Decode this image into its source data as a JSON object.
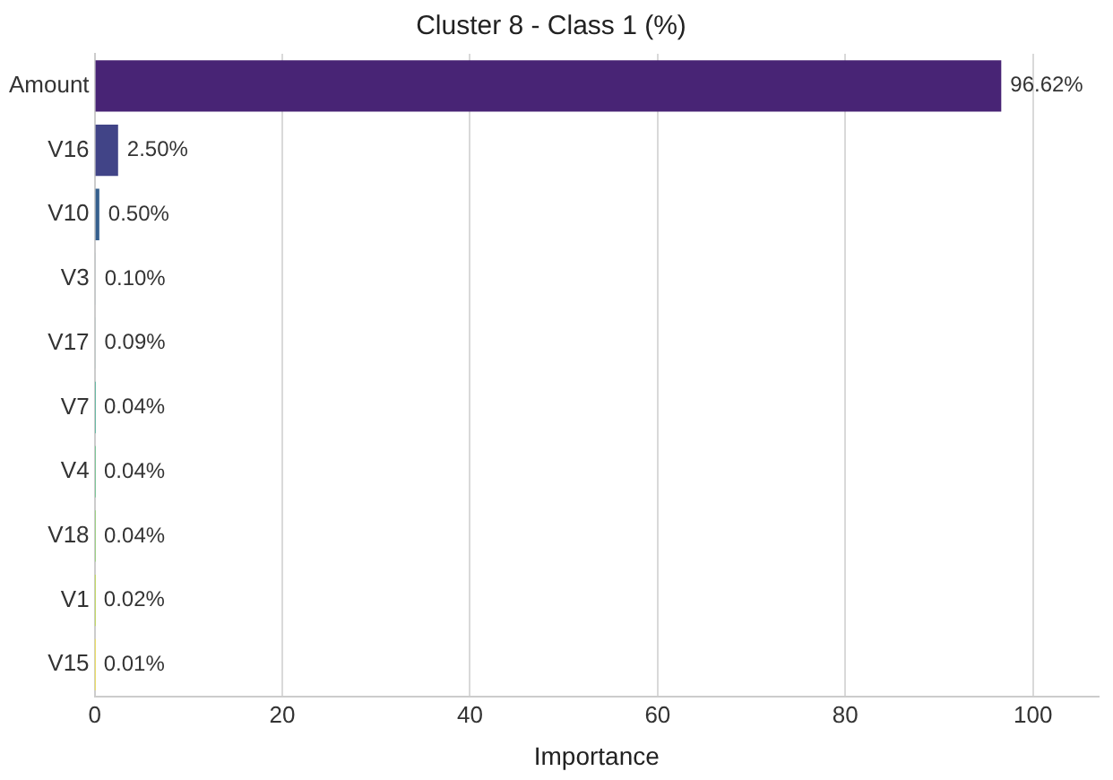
{
  "chart_data": {
    "type": "bar",
    "orientation": "horizontal",
    "title": "Cluster 8 - Class 1 (%)",
    "xlabel": "Importance",
    "categories": [
      "Amount",
      "V16",
      "V10",
      "V3",
      "V17",
      "V7",
      "V4",
      "V18",
      "V1",
      "V15"
    ],
    "values": [
      96.62,
      2.5,
      0.5,
      0.1,
      0.09,
      0.04,
      0.04,
      0.04,
      0.02,
      0.01
    ],
    "value_labels": [
      "96.62%",
      "2.50%",
      "0.50%",
      "0.10%",
      "0.09%",
      "0.04%",
      "0.04%",
      "0.04%",
      "0.02%",
      "0.01%"
    ],
    "colors": [
      "#482475",
      "#414487",
      "#355f8d",
      "#2a788e",
      "#21918c",
      "#22a884",
      "#44bf70",
      "#7ad151",
      "#bddf26",
      "#fde725"
    ],
    "xlim": [
      0,
      107
    ],
    "xticks": [
      0,
      20,
      40,
      60,
      80,
      100
    ],
    "grid": "x"
  }
}
